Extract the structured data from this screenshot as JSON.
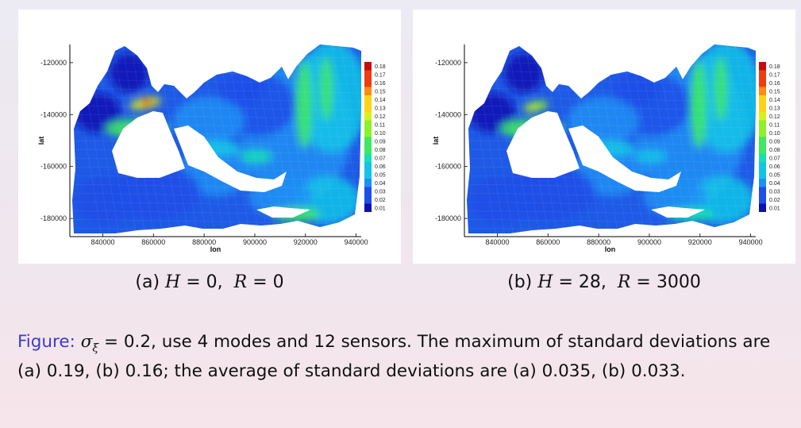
{
  "chart_data": [
    {
      "type": "heatmap",
      "panel": "a",
      "caption": "(a) H = 0,  R = 0",
      "params": {
        "H": 0,
        "R": 0
      },
      "xlabel": "lon",
      "ylabel": "lat",
      "xticks": [
        840000,
        860000,
        880000,
        900000,
        920000,
        940000
      ],
      "yticks": [
        -120000,
        -140000,
        -160000,
        -180000
      ],
      "xlim": [
        827000,
        942000
      ],
      "ylim": [
        -187000,
        -113000
      ],
      "colorbar_levels": [
        0.18,
        0.17,
        0.16,
        0.15,
        0.14,
        0.13,
        0.12,
        0.11,
        0.1,
        0.09,
        0.08,
        0.07,
        0.06,
        0.05,
        0.04,
        0.03,
        0.02,
        0.01
      ],
      "max_std": 0.19,
      "mean_std": 0.035
    },
    {
      "type": "heatmap",
      "panel": "b",
      "caption": "(b) H = 28,  R = 3000",
      "params": {
        "H": 28,
        "R": 3000
      },
      "xlabel": "lon",
      "ylabel": "lat",
      "xticks": [
        840000,
        860000,
        880000,
        900000,
        920000,
        940000
      ],
      "yticks": [
        -120000,
        -140000,
        -160000,
        -180000
      ],
      "xlim": [
        827000,
        942000
      ],
      "ylim": [
        -187000,
        -113000
      ],
      "colorbar_levels": [
        0.18,
        0.17,
        0.16,
        0.15,
        0.14,
        0.13,
        0.12,
        0.11,
        0.1,
        0.09,
        0.08,
        0.07,
        0.06,
        0.05,
        0.04,
        0.03,
        0.02,
        0.01
      ],
      "max_std": 0.16,
      "mean_std": 0.033
    }
  ],
  "captions": {
    "a": {
      "label": "(a)",
      "h_value": "0",
      "r_value": "0"
    },
    "b": {
      "label": "(b)",
      "h_value": "28",
      "r_value": "3000"
    }
  },
  "figure_note": {
    "label": "Figure:",
    "sigma_value": "0.2",
    "text_1": ", use 4 modes and 12 sensors. The maximum of standard deviations are (a) 0.19, (b) 0.16; the average of standard deviations are (a) 0.035, (b) 0.033."
  },
  "colors": {
    "note_label": "#3b3bd0",
    "scale": [
      "#1010b0",
      "#1f4ee8",
      "#1e8ff5",
      "#12c4e8",
      "#14e0b4",
      "#3ee860",
      "#8ef02a",
      "#d8f01a",
      "#ffd21a",
      "#ff8a14",
      "#f03c10",
      "#c80a0a"
    ]
  }
}
